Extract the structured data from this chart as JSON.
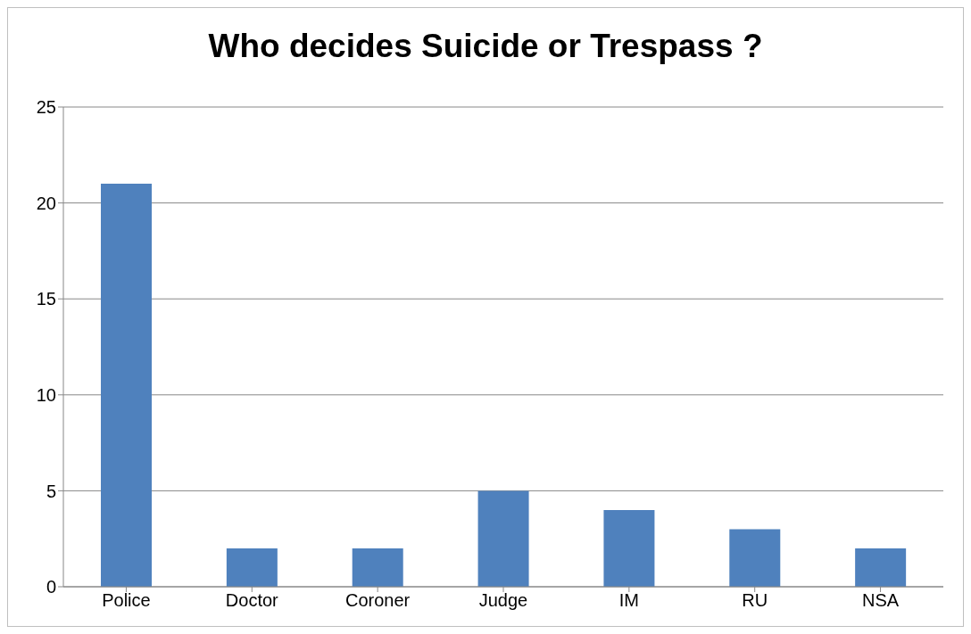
{
  "chart_data": {
    "type": "bar",
    "title": "Who decides Suicide or Trespass ?",
    "categories": [
      "Police",
      "Doctor",
      "Coroner",
      "Judge",
      "IM",
      "RU",
      "NSA"
    ],
    "values": [
      21,
      2,
      2,
      5,
      4,
      3,
      2
    ],
    "color": "#4f81bd",
    "ylim": [
      0,
      25
    ],
    "yticks": [
      0,
      5,
      10,
      15,
      20,
      25
    ],
    "grid": "y"
  }
}
